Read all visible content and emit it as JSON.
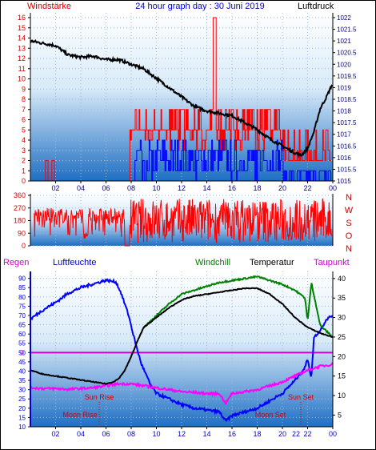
{
  "header": {
    "left_label": "Windstärke",
    "title": "24 hour graph day : 30 Juni 2019",
    "right_label": "Luftdruck"
  },
  "colors": {
    "wind_speed": "#ff0000",
    "wind_gust": "#0000ff",
    "pressure": "#000000",
    "direction": "#ff0000",
    "humidity": "#0000ff",
    "windchill": "#008000",
    "temperature": "#000000",
    "dewpoint": "#ff00ff",
    "freezing_line": "#cc00cc",
    "astro": "#cc0000",
    "axis_text": "#cc0000",
    "right_axis_text": "#000080"
  },
  "chart_data": [
    {
      "type": "line",
      "name": "wind-pressure",
      "x_ticks": [
        "02",
        "04",
        "06",
        "08",
        "10",
        "12",
        "14",
        "16",
        "18",
        "20",
        "22",
        "00"
      ],
      "y_left_ticks": [
        "0",
        "1",
        "2",
        "3",
        "4",
        "5",
        "6",
        "7",
        "8",
        "9",
        "10",
        "11",
        "12",
        "13",
        "14",
        "15",
        "16"
      ],
      "y_left_range": [
        0,
        16
      ],
      "y_right_ticks": [
        "1015",
        "1015.5",
        "1016",
        "1016.5",
        "1017",
        "1017.5",
        "1018",
        "1018.5",
        "1019",
        "1019.5",
        "1020",
        "1020.5",
        "1021",
        "1021.5",
        "1022"
      ],
      "y_right_range": [
        1015,
        1022
      ],
      "pressure": {
        "hours": [
          0,
          1,
          2,
          3,
          4,
          5,
          6,
          7,
          8,
          9,
          10,
          11,
          12,
          13,
          14,
          15,
          16,
          17,
          18,
          19,
          20,
          21,
          21.5,
          22,
          22.5,
          23,
          23.5,
          24
        ],
        "values": [
          1021.0,
          1020.9,
          1020.8,
          1020.4,
          1020.3,
          1020.35,
          1020.2,
          1020.2,
          1020.0,
          1019.8,
          1019.4,
          1019.0,
          1018.6,
          1018.2,
          1018.0,
          1017.9,
          1017.8,
          1017.5,
          1017.2,
          1016.8,
          1016.5,
          1016.2,
          1016.1,
          1016.4,
          1017.1,
          1018.1,
          1018.6,
          1019.2
        ]
      },
      "wind_speed_ticks": [
        0,
        1,
        2,
        3,
        4,
        5,
        6,
        7,
        16
      ],
      "wind_gust_ticks": [
        0,
        1,
        2,
        3,
        4
      ]
    },
    {
      "type": "line",
      "name": "wind-direction",
      "y_left_ticks": [
        "0",
        "90",
        "180",
        "270",
        "360"
      ],
      "y_left_range": [
        0,
        360
      ],
      "y_right_ticks": [
        "N",
        "W",
        "S",
        "O",
        "N"
      ]
    },
    {
      "type": "line",
      "name": "temperature-humidity",
      "x_ticks": [
        "02",
        "04",
        "06",
        "08",
        "10",
        "12",
        "14",
        "16",
        "18",
        "20",
        "22",
        "00"
      ],
      "legend": [
        "Regen",
        "Luftfeuchte",
        "Windchill",
        "Temperatur",
        "Taupunkt"
      ],
      "y_left_ticks": [
        "10",
        "15",
        "20",
        "25",
        "30",
        "35",
        "40",
        "45",
        "50",
        "55",
        "60",
        "65",
        "70",
        "75",
        "80",
        "85",
        "90"
      ],
      "y_left_range": [
        10,
        92
      ],
      "y_right_ticks": [
        "5",
        "10",
        "15",
        "20",
        "25",
        "30",
        "35",
        "40"
      ],
      "y_right_range": [
        2,
        41
      ],
      "zero_marker": "0",
      "temperature": {
        "hours": [
          0,
          1,
          2,
          3,
          4,
          5,
          6,
          6.5,
          7,
          7.5,
          8,
          8.5,
          9,
          10,
          11,
          12,
          13,
          14,
          15,
          16,
          17,
          18,
          19,
          20,
          21,
          22,
          23,
          24
        ],
        "values": [
          16.5,
          15.5,
          15.0,
          14.5,
          14.0,
          13.5,
          13.0,
          13.4,
          14.3,
          16.5,
          20.0,
          24.0,
          27.5,
          30.0,
          32.5,
          34.5,
          35.5,
          36.0,
          36.5,
          37.0,
          37.5,
          37.5,
          36.0,
          33.5,
          30.0,
          27.5,
          26.0,
          25.0
        ]
      },
      "windchill": {
        "hours": [
          9,
          10,
          11,
          12,
          13,
          14,
          15,
          16,
          17,
          18,
          19,
          20,
          21,
          21.8,
          22,
          22.3,
          23,
          24
        ],
        "values": [
          27.5,
          30.5,
          33.5,
          36.0,
          37.0,
          38.0,
          39.0,
          39.5,
          40.0,
          40.5,
          39.5,
          38.5,
          37.0,
          35.0,
          29.0,
          39.0,
          28.0,
          25.0
        ]
      },
      "humidity": {
        "hours": [
          0,
          1,
          2,
          3,
          4,
          5,
          6,
          6.8,
          7.2,
          7.8,
          8.3,
          8.8,
          9.5,
          10,
          11,
          12,
          13,
          14,
          15,
          15.5,
          16,
          17,
          18,
          19,
          20,
          21,
          21.8,
          22,
          22.3,
          22.5,
          23,
          23.5,
          24
        ],
        "values": [
          68,
          73,
          77,
          82,
          85,
          87,
          89,
          88,
          82,
          70,
          56,
          44,
          33,
          28,
          25,
          22,
          20,
          19,
          18,
          13,
          16,
          18,
          20,
          24,
          28,
          35,
          42,
          47,
          36,
          58,
          62,
          68,
          70
        ]
      },
      "dewpoint": {
        "hours": [
          0,
          1,
          2,
          3,
          4,
          5,
          6,
          7,
          8,
          9,
          10,
          11,
          12,
          13,
          14,
          15,
          15.5,
          16,
          17,
          18,
          19,
          20,
          21,
          22,
          22.5,
          23,
          24
        ],
        "values": [
          12.0,
          11.8,
          11.8,
          11.6,
          11.8,
          12.0,
          12.5,
          13.0,
          13.0,
          12.5,
          12.0,
          11.5,
          11.0,
          10.8,
          10.5,
          10.5,
          8.0,
          10.5,
          11.0,
          11.5,
          12.5,
          13.5,
          15.0,
          16.5,
          17.0,
          17.5,
          18.0
        ]
      },
      "annotations": {
        "sun_rise": "Sun Rise",
        "sun_set": "Sun Set",
        "moon_rise": "Moon Rise",
        "moon_set": "Moon Set",
        "x_tick_22_overlap": "22"
      }
    }
  ]
}
